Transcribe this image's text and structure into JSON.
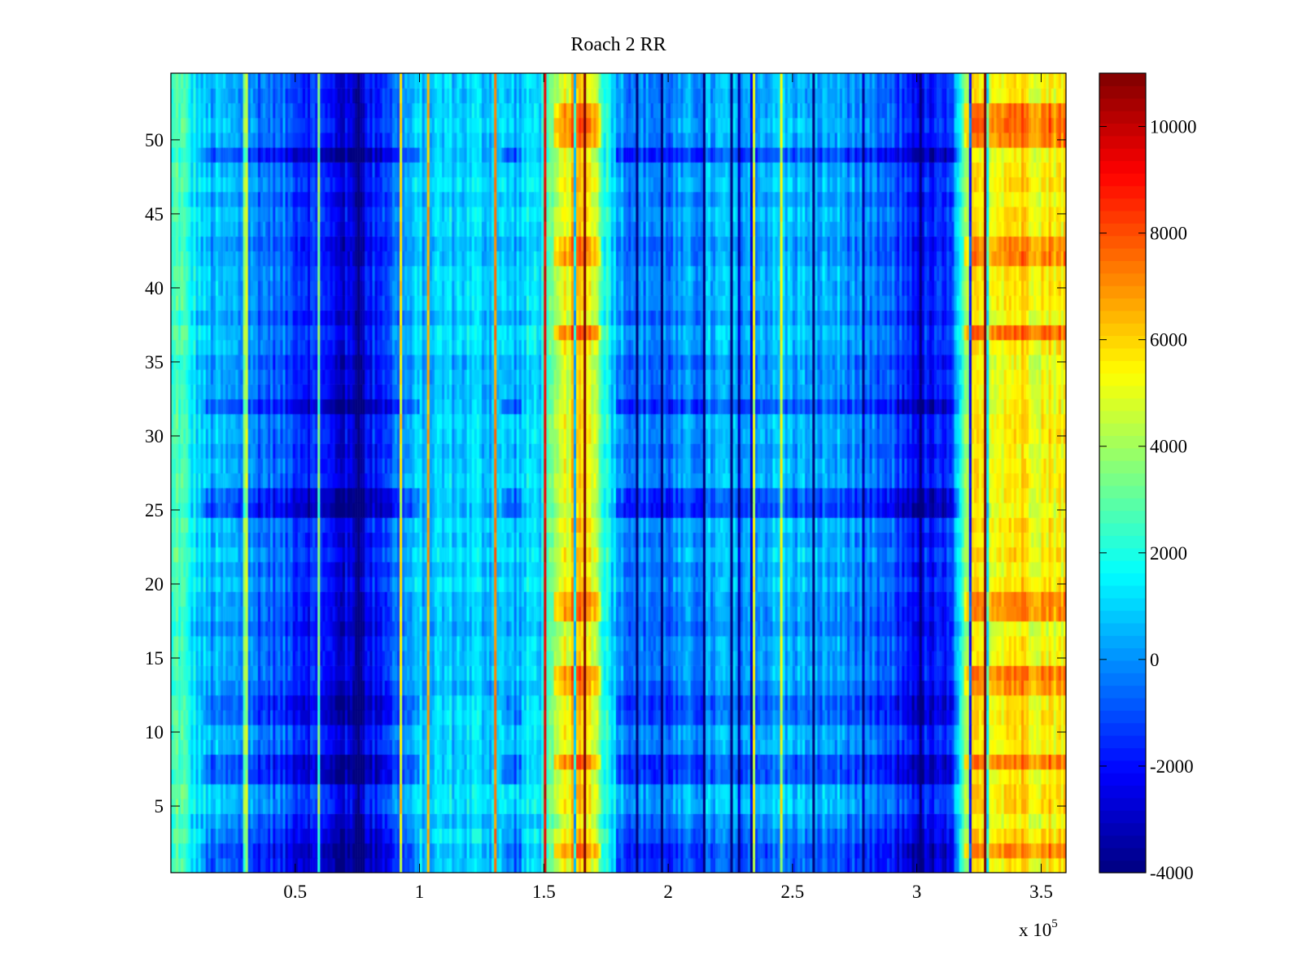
{
  "chart_data": {
    "type": "heatmap",
    "title": "Roach 2 RR",
    "xlabel": "",
    "ylabel": "",
    "x_exponent_label": {
      "prefix": "x 10",
      "exponent": "5"
    },
    "xlim": [
      0,
      3.6
    ],
    "ylim": [
      0.5,
      54.5
    ],
    "x_scale": 100000,
    "xticks": [
      0.5,
      1,
      1.5,
      2,
      2.5,
      3,
      3.5
    ],
    "xtick_labels": [
      "0.5",
      "1",
      "1.5",
      "2",
      "2.5",
      "3",
      "3.5"
    ],
    "yticks": [
      5,
      10,
      15,
      20,
      25,
      30,
      35,
      40,
      45,
      50
    ],
    "ytick_labels": [
      "5",
      "10",
      "15",
      "20",
      "25",
      "30",
      "35",
      "40",
      "45",
      "50"
    ],
    "rows": 54,
    "colormap": "jet",
    "clim": [
      -4000,
      11000
    ],
    "colorbar_ticks": [
      -4000,
      -2000,
      0,
      2000,
      4000,
      6000,
      8000,
      10000
    ],
    "colorbar_tick_labels": [
      "-4000",
      "-2000",
      "0",
      "2000",
      "4000",
      "6000",
      "8000",
      "10000"
    ],
    "column_profile": {
      "x": [
        0,
        0.03,
        0.08,
        0.15,
        0.3,
        0.5,
        0.65,
        0.75,
        0.8,
        0.9,
        1.0,
        1.2,
        1.4,
        1.5,
        1.55,
        1.6,
        1.65,
        1.7,
        1.75,
        1.82,
        2.0,
        2.2,
        2.5,
        2.7,
        2.9,
        3.05,
        3.12,
        3.17,
        3.2,
        3.22,
        3.3,
        3.4,
        3.5,
        3.6
      ],
      "values": [
        1800,
        3000,
        1500,
        500,
        0,
        -1000,
        -2300,
        -3000,
        -2000,
        -500,
        800,
        1000,
        700,
        1500,
        3500,
        5500,
        6000,
        5000,
        2000,
        0,
        -400,
        400,
        600,
        200,
        -1000,
        -2100,
        -2000,
        1000,
        3500,
        5200,
        5500,
        5800,
        5500,
        5600
      ]
    },
    "hot_rows": [
      2,
      8,
      13,
      14,
      18,
      19,
      37,
      42,
      43,
      50,
      51,
      52
    ],
    "cold_rows": [
      1,
      2,
      3,
      7,
      8,
      11,
      12,
      25,
      26,
      32,
      49
    ]
  }
}
